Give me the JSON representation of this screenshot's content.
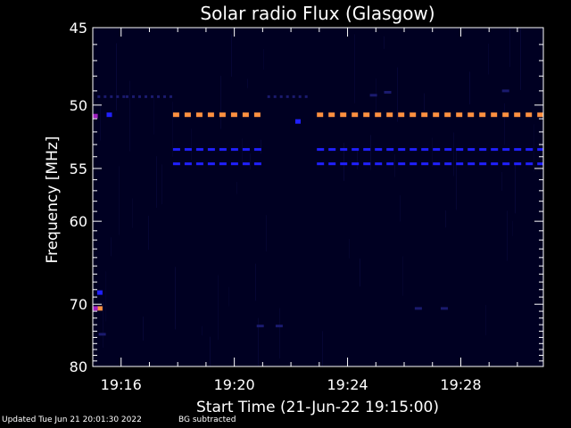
{
  "footer": {
    "updated": "Updated Tue Jun 21 20:01:30 2022",
    "note": "BG subtracted"
  },
  "colors": {
    "background": "#000000",
    "axis": "#ffffff",
    "plot_background": "#000022",
    "weak": "#1a1a6e",
    "blue": "#2020ff",
    "purple": "#a020c0",
    "orange": "#ff9040"
  },
  "chart_data": {
    "type": "heatmap",
    "title": "Solar radio Flux (Glasgow)",
    "xlabel": "Start Time (21-Jun-22 19:15:00)",
    "ylabel": "Frequency [MHz]",
    "xlim": [
      "19:15:00",
      "19:30:55"
    ],
    "ylim": [
      80,
      45
    ],
    "y_scale": "reciprocal",
    "x_tick_labels": [
      "19:16",
      "19:20",
      "19:24",
      "19:28"
    ],
    "x_ticks": [
      "19:16:00",
      "19:20:00",
      "19:24:00",
      "19:28:00"
    ],
    "y_tick_labels": [
      "45",
      "50",
      "55",
      "60",
      "70",
      "80"
    ],
    "y_ticks": [
      45,
      50,
      55,
      60,
      70,
      80
    ],
    "grid": false,
    "emission_bands": [
      {
        "freq_mhz": 50.7,
        "start": "19:17:50",
        "end": "19:21:00",
        "level": "high",
        "pattern": "dashed"
      },
      {
        "freq_mhz": 50.7,
        "start": "19:22:55",
        "end": "19:30:55",
        "level": "high",
        "pattern": "dashed"
      },
      {
        "freq_mhz": 53.4,
        "start": "19:17:50",
        "end": "19:21:00",
        "level": "medium",
        "pattern": "dashed"
      },
      {
        "freq_mhz": 53.4,
        "start": "19:22:55",
        "end": "19:30:55",
        "level": "medium",
        "pattern": "dashed"
      },
      {
        "freq_mhz": 54.6,
        "start": "19:17:50",
        "end": "19:21:00",
        "level": "medium",
        "pattern": "dashed"
      },
      {
        "freq_mhz": 54.6,
        "start": "19:22:55",
        "end": "19:30:55",
        "level": "medium",
        "pattern": "dashed"
      },
      {
        "freq_mhz": 49.4,
        "start": "19:15:10",
        "end": "19:16:10",
        "level": "low",
        "pattern": "dotted"
      },
      {
        "freq_mhz": 49.4,
        "start": "19:16:10",
        "end": "19:17:50",
        "level": "low",
        "pattern": "dotted"
      },
      {
        "freq_mhz": 49.4,
        "start": "19:21:10",
        "end": "19:22:40",
        "level": "low",
        "pattern": "dotted"
      }
    ],
    "spots": [
      {
        "freq_mhz": 50.8,
        "time": "19:15:05",
        "level": "purple"
      },
      {
        "freq_mhz": 50.7,
        "time": "19:15:35",
        "level": "medium"
      },
      {
        "freq_mhz": 70.6,
        "time": "19:15:15",
        "level": "high"
      },
      {
        "freq_mhz": 70.6,
        "time": "19:15:05",
        "level": "purple"
      },
      {
        "freq_mhz": 68.4,
        "time": "19:15:15",
        "level": "medium"
      },
      {
        "freq_mhz": 51.2,
        "time": "19:22:15",
        "level": "medium"
      },
      {
        "freq_mhz": 49.3,
        "time": "19:24:55",
        "level": "low"
      },
      {
        "freq_mhz": 49.1,
        "time": "19:25:25",
        "level": "low"
      },
      {
        "freq_mhz": 49.0,
        "time": "19:29:35",
        "level": "low"
      },
      {
        "freq_mhz": 73.2,
        "time": "19:20:55",
        "level": "low"
      },
      {
        "freq_mhz": 73.2,
        "time": "19:21:35",
        "level": "low"
      },
      {
        "freq_mhz": 70.6,
        "time": "19:26:30",
        "level": "low"
      },
      {
        "freq_mhz": 70.6,
        "time": "19:27:25",
        "level": "low"
      },
      {
        "freq_mhz": 74.5,
        "time": "19:15:20",
        "level": "low"
      }
    ]
  }
}
